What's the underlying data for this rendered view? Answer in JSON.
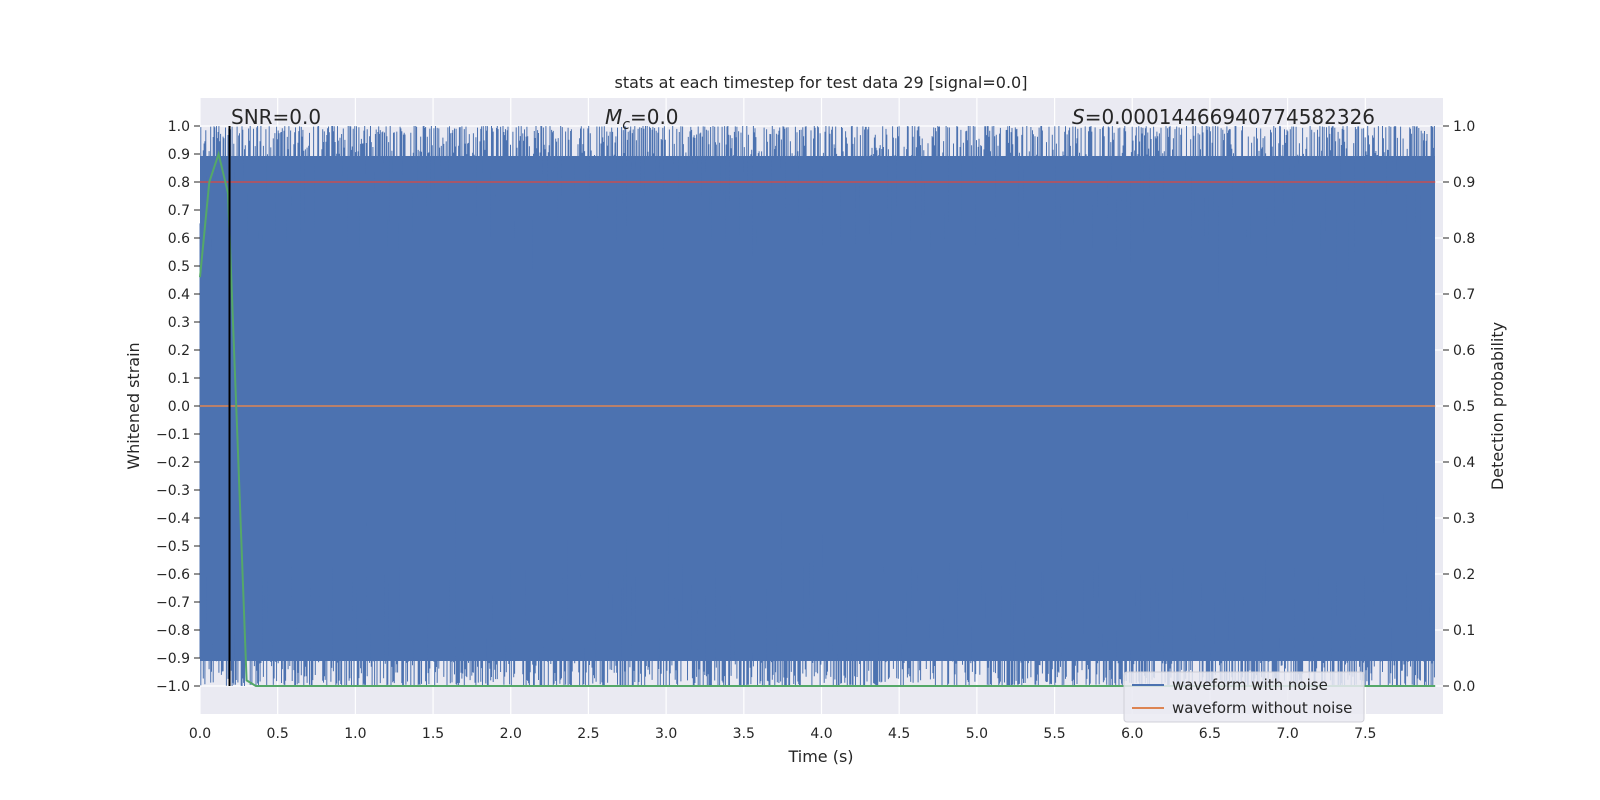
{
  "chart_data": {
    "type": "line",
    "title": "stats at each timestep for test data 29 [signal=0.0]",
    "xlabel": "Time (s)",
    "ylabel_left": "Whitened strain",
    "ylabel_right": "Detection probability",
    "xlim": [
      0.0,
      8.0
    ],
    "ylim_left": [
      -1.1,
      1.1
    ],
    "ylim_right": [
      -0.05,
      1.05
    ],
    "x_ticks": [
      "0.0",
      "0.5",
      "1.0",
      "1.5",
      "2.0",
      "2.5",
      "3.0",
      "3.5",
      "4.0",
      "4.5",
      "5.0",
      "5.5",
      "6.0",
      "6.5",
      "7.0",
      "7.5"
    ],
    "y_ticks_left": [
      "1.0",
      "0.9",
      "0.8",
      "0.7",
      "0.6",
      "0.5",
      "0.4",
      "0.3",
      "0.2",
      "0.1",
      "0.0",
      "−0.1",
      "−0.2",
      "−0.3",
      "−0.4",
      "−0.5",
      "−0.6",
      "−0.7",
      "−0.8",
      "−0.9",
      "−1.0"
    ],
    "y_ticks_right": [
      "1.0",
      "0.9",
      "0.8",
      "0.7",
      "0.6",
      "0.5",
      "0.4",
      "0.3",
      "0.2",
      "0.1",
      "0.0"
    ],
    "annotations": {
      "snr": "SNR=0.0",
      "mc_symbol": "M",
      "mc_sub": "c",
      "mc_value": "=0.0",
      "s_symbol": "S",
      "s_value": "=0.00014466940774582326"
    },
    "legend": {
      "placement": "bottom-right",
      "entries": [
        {
          "label": "waveform with noise",
          "color": "#4c72b0"
        },
        {
          "label": "waveform without noise",
          "color": "#dd8452"
        }
      ]
    },
    "threshold_line": {
      "y_right": 0.9,
      "color": "#c44e52"
    },
    "marker_line": {
      "x": 0.19,
      "color": "#000000"
    },
    "series": [
      {
        "name": "waveform with noise",
        "color": "#4c72b0",
        "range_left": [
          -1.0,
          1.0
        ],
        "description": "dense noise filling full range"
      },
      {
        "name": "waveform without noise",
        "color": "#dd8452",
        "values_left": [
          0.0,
          0.0
        ]
      },
      {
        "name": "detection probability",
        "color": "#55a868",
        "x": [
          0.0,
          0.06,
          0.12,
          0.18,
          0.24,
          0.3,
          0.36,
          7.95
        ],
        "y_right": [
          0.73,
          0.9,
          0.95,
          0.88,
          0.45,
          0.01,
          0.0,
          0.0
        ]
      }
    ]
  },
  "colors": {
    "axes_bg": "#eaeaf2",
    "grid": "#ffffff",
    "noise": "#4c72b0",
    "clean": "#dd8452",
    "prob": "#55a868",
    "threshold": "#c44e52"
  }
}
